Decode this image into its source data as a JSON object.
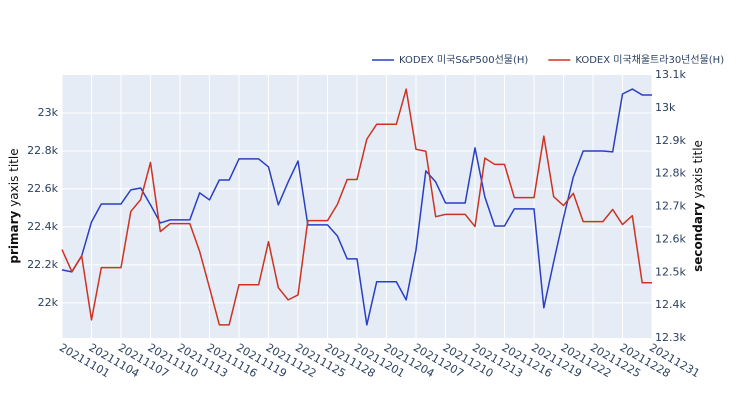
{
  "chart_data": {
    "type": "line",
    "y_label_bold": "primary",
    "y_label": " yaxis title",
    "y2_label_bold": "secondary",
    "y2_label": " yaxis title",
    "legend": "top-right",
    "grid": true,
    "x": [
      "20211101",
      "20211102",
      "20211103",
      "20211104",
      "20211105",
      "20211107",
      "20211108",
      "20211109",
      "20211110",
      "20211111",
      "20211112",
      "20211114",
      "20211115",
      "20211116",
      "20211117",
      "20211118",
      "20211119",
      "20211121",
      "20211122",
      "20211123",
      "20211124",
      "20211125",
      "20211126",
      "20211128",
      "20211129",
      "20211130",
      "20211201",
      "20211202",
      "20211203",
      "20211205",
      "20211206",
      "20211207",
      "20211208",
      "20211209",
      "20211210",
      "20211212",
      "20211213",
      "20211214",
      "20211215",
      "20211216",
      "20211217",
      "20211219",
      "20211220",
      "20211221",
      "20211222",
      "20211223",
      "20211224",
      "20211226",
      "20211227",
      "20211228",
      "20211229",
      "20211230",
      "20211231"
    ],
    "xlim": [
      "20211101",
      "20211231"
    ],
    "xticks": [
      "20211101",
      "20211104",
      "20211107",
      "20211110",
      "20211113",
      "20211116",
      "20211119",
      "20211122",
      "20211125",
      "20211128",
      "20211201",
      "20211204",
      "20211207",
      "20211210",
      "20211213",
      "20211216",
      "20211219",
      "20211222",
      "20211225",
      "20211228",
      "20211231"
    ],
    "ylim": [
      21815,
      23200
    ],
    "yticks": [
      {
        "value": 22000,
        "label": "22k"
      },
      {
        "value": 22200,
        "label": "22.2k"
      },
      {
        "value": 22400,
        "label": "22.4k"
      },
      {
        "value": 22600,
        "label": "22.6k"
      },
      {
        "value": 22800,
        "label": "22.8k"
      },
      {
        "value": 23000,
        "label": "23k"
      }
    ],
    "y2lim": [
      12300,
      13100
    ],
    "y2ticks": [
      {
        "value": 12300,
        "label": "12.3k"
      },
      {
        "value": 12400,
        "label": "12.4k"
      },
      {
        "value": 12500,
        "label": "12.5k"
      },
      {
        "value": 12600,
        "label": "12.6k"
      },
      {
        "value": 12700,
        "label": "12.7k"
      },
      {
        "value": 12800,
        "label": "12.8k"
      },
      {
        "value": 12900,
        "label": "12.9k"
      },
      {
        "value": 13000,
        "label": "13k"
      },
      {
        "value": 13100,
        "label": "13.1k"
      }
    ],
    "series": [
      {
        "name": "KODEX 미국S&P500선물(H)",
        "color": "#2a3fc4",
        "axis": "y",
        "values": [
          22174,
          22163,
          22247,
          22426,
          22521,
          22521,
          22595,
          22605,
          22516,
          22421,
          22437,
          22437,
          22579,
          22542,
          22647,
          22647,
          22758,
          22758,
          22716,
          22516,
          22637,
          22747,
          22411,
          22411,
          22353,
          22232,
          22232,
          21884,
          22111,
          22111,
          22016,
          22279,
          22695,
          22637,
          22526,
          22526,
          22816,
          22558,
          22405,
          22405,
          22495,
          22495,
          21974,
          22216,
          22447,
          22663,
          22800,
          22800,
          22795,
          23100,
          23126,
          23095,
          23095
        ]
      },
      {
        "name": "KODEX 미국채울트라30년선물(H)",
        "color": "#cc3322",
        "axis": "y2",
        "values": [
          12569,
          12502,
          12550,
          12355,
          12514,
          12514,
          12685,
          12721,
          12834,
          12624,
          12648,
          12648,
          12563,
          12453,
          12340,
          12340,
          12462,
          12462,
          12593,
          12453,
          12416,
          12431,
          12657,
          12657,
          12706,
          12782,
          12782,
          12905,
          12950,
          12950,
          13057,
          12874,
          12868,
          12669,
          12676,
          12676,
          12639,
          12847,
          12828,
          12828,
          12727,
          12727,
          12914,
          12730,
          12703,
          12740,
          12654,
          12654,
          12691,
          12645,
          12672,
          12468,
          12468
        ]
      }
    ]
  }
}
